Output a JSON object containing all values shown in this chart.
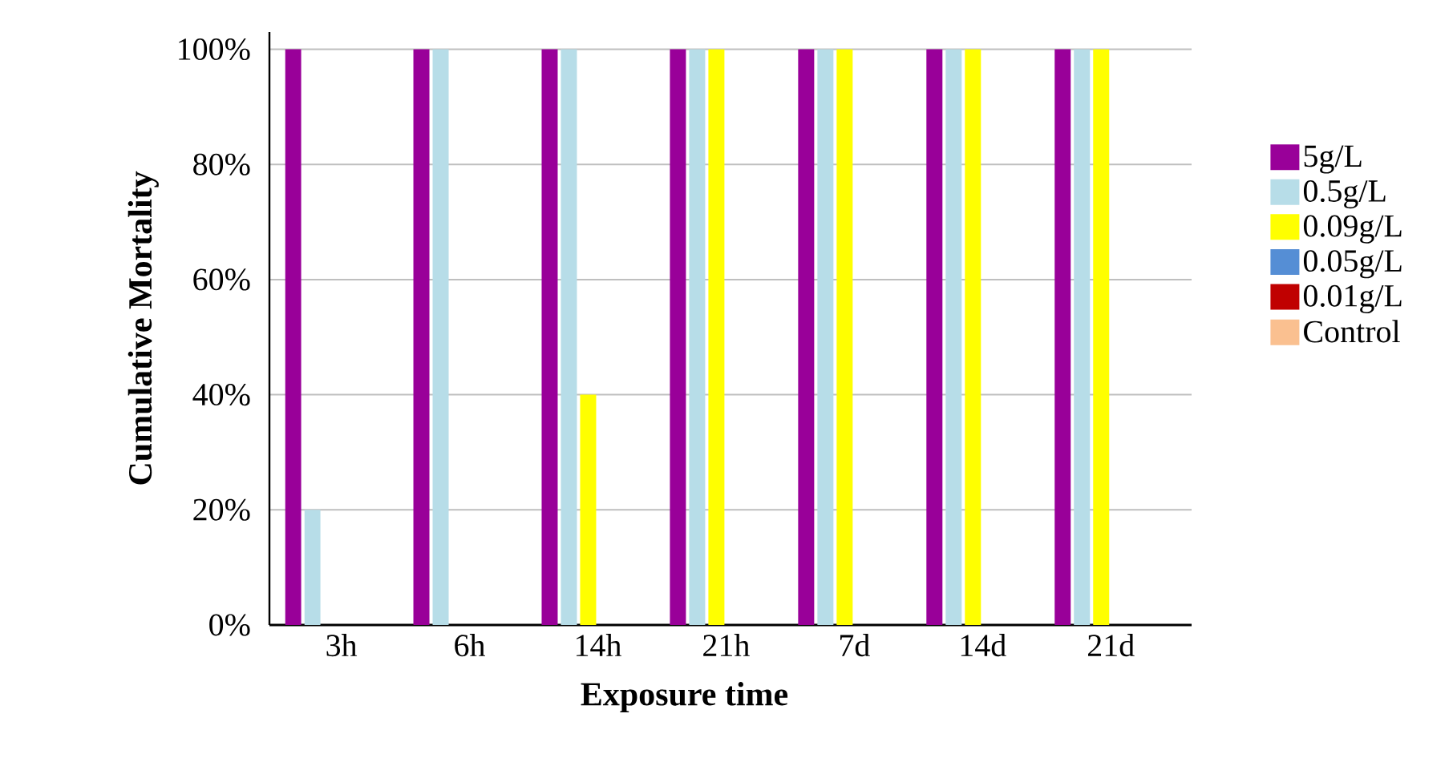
{
  "chart_data": {
    "type": "bar",
    "xlabel": "Exposure time",
    "ylabel": "Cumulative Mortality",
    "categories": [
      "3h",
      "6h",
      "14h",
      "21h",
      "7d",
      "14d",
      "21d"
    ],
    "series": [
      {
        "name": "5g/L",
        "color": "#990099",
        "values": [
          100,
          100,
          100,
          100,
          100,
          100,
          100
        ]
      },
      {
        "name": "0.5g/L",
        "color": "#b7dde8",
        "values": [
          20,
          100,
          100,
          100,
          100,
          100,
          100
        ]
      },
      {
        "name": "0.09g/L",
        "color": "#ffff00",
        "values": [
          0,
          0,
          40,
          100,
          100,
          100,
          100
        ]
      },
      {
        "name": "0.05g/L",
        "color": "#558ed5",
        "values": [
          0,
          0,
          0,
          0,
          0,
          0,
          0
        ]
      },
      {
        "name": "0.01g/L",
        "color": "#c00000",
        "values": [
          0,
          0,
          0,
          0,
          0,
          0,
          0
        ]
      },
      {
        "name": "Control",
        "color": "#fac090",
        "values": [
          0,
          0,
          0,
          0,
          0,
          0,
          0
        ]
      }
    ],
    "ylim": [
      0,
      103
    ],
    "yticks": [
      {
        "value": 0,
        "label": "0%"
      },
      {
        "value": 20,
        "label": "20%"
      },
      {
        "value": 40,
        "label": "40%"
      },
      {
        "value": 60,
        "label": "60%"
      },
      {
        "value": 80,
        "label": "80%"
      },
      {
        "value": 100,
        "label": "100%"
      }
    ],
    "grid": "y",
    "legend": "right"
  }
}
